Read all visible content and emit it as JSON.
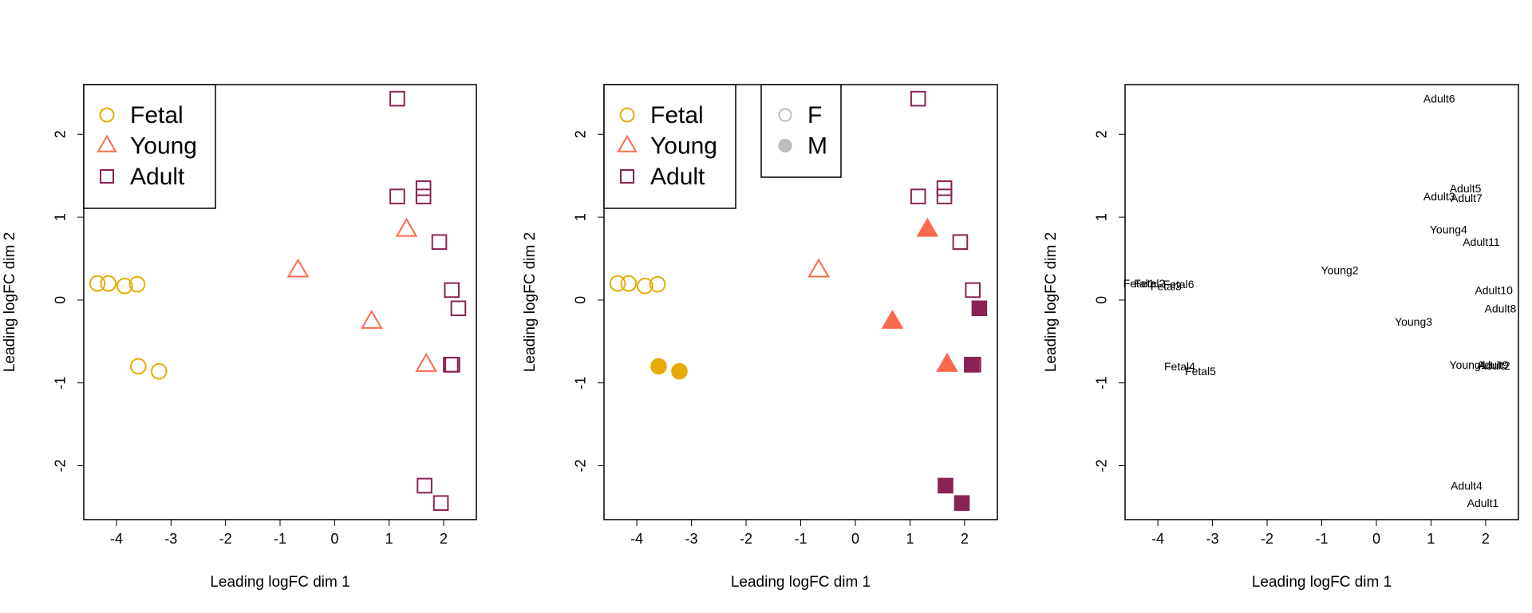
{
  "colors": {
    "fetal": "#E6AB02",
    "young": "#FC6A4E",
    "adult": "#8A2355",
    "sex_legend": "#BDBDBD"
  },
  "chart_data": [
    {
      "type": "scatter",
      "panel": "group",
      "xlabel": "Leading logFC dim 1",
      "ylabel": "Leading logFC dim 2",
      "xlim": [
        -4.6,
        2.6
      ],
      "ylim": [
        -2.65,
        2.6
      ],
      "xticks": [
        -4,
        -3,
        -2,
        -1,
        0,
        1,
        2
      ],
      "yticks": [
        -2,
        -1,
        0,
        1,
        2
      ],
      "legend": {
        "position": "top-left",
        "entries": [
          "Fetal",
          "Young",
          "Adult"
        ]
      },
      "series": [
        {
          "name": "Fetal",
          "marker": "circle",
          "color": "#E6AB02",
          "points": [
            [
              -4.35,
              0.2
            ],
            [
              -4.15,
              0.2
            ],
            [
              -3.85,
              0.17
            ],
            [
              -3.62,
              0.19
            ],
            [
              -3.6,
              -0.8
            ],
            [
              -3.22,
              -0.86
            ]
          ]
        },
        {
          "name": "Young",
          "marker": "triangle",
          "color": "#FC6A4E",
          "points": [
            [
              -0.67,
              0.36
            ],
            [
              0.68,
              -0.26
            ],
            [
              1.32,
              0.85
            ],
            [
              1.68,
              -0.78
            ]
          ]
        },
        {
          "name": "Adult",
          "marker": "square",
          "color": "#8A2355",
          "points": [
            [
              1.15,
              2.43
            ],
            [
              1.63,
              1.35
            ],
            [
              1.63,
              1.25
            ],
            [
              1.15,
              1.25
            ],
            [
              1.92,
              0.7
            ],
            [
              2.15,
              0.12
            ],
            [
              2.27,
              -0.1
            ],
            [
              2.13,
              -0.78
            ],
            [
              2.16,
              -0.78
            ],
            [
              1.65,
              -2.24
            ],
            [
              1.95,
              -2.45
            ]
          ]
        }
      ]
    },
    {
      "type": "scatter",
      "panel": "group-and-sex",
      "xlabel": "Leading logFC dim 1",
      "ylabel": "Leading logFC dim 2",
      "xlim": [
        -4.6,
        2.6
      ],
      "ylim": [
        -2.65,
        2.6
      ],
      "xticks": [
        -4,
        -3,
        -2,
        -1,
        0,
        1,
        2
      ],
      "yticks": [
        -2,
        -1,
        0,
        1,
        2
      ],
      "legend": {
        "position": "top-left",
        "entries": [
          "Fetal",
          "Young",
          "Adult"
        ]
      },
      "legend2": {
        "position": "top-center",
        "entries": [
          "F",
          "M"
        ]
      },
      "series": [
        {
          "name": "Fetal",
          "marker": "circle",
          "color": "#E6AB02",
          "points": [
            [
              -4.35,
              0.2,
              "F"
            ],
            [
              -4.15,
              0.2,
              "F"
            ],
            [
              -3.85,
              0.17,
              "F"
            ],
            [
              -3.62,
              0.19,
              "F"
            ],
            [
              -3.6,
              -0.8,
              "M"
            ],
            [
              -3.22,
              -0.86,
              "M"
            ]
          ]
        },
        {
          "name": "Young",
          "marker": "triangle",
          "color": "#FC6A4E",
          "points": [
            [
              -0.67,
              0.36,
              "F"
            ],
            [
              0.68,
              -0.26,
              "M"
            ],
            [
              1.32,
              0.85,
              "M"
            ],
            [
              1.68,
              -0.78,
              "M"
            ]
          ]
        },
        {
          "name": "Adult",
          "marker": "square",
          "color": "#8A2355",
          "points": [
            [
              1.15,
              2.43,
              "F"
            ],
            [
              1.63,
              1.35,
              "F"
            ],
            [
              1.63,
              1.25,
              "F"
            ],
            [
              1.15,
              1.25,
              "F"
            ],
            [
              1.92,
              0.7,
              "F"
            ],
            [
              2.15,
              0.12,
              "F"
            ],
            [
              2.27,
              -0.1,
              "M"
            ],
            [
              2.13,
              -0.78,
              "M"
            ],
            [
              2.16,
              -0.78,
              "F"
            ],
            [
              1.65,
              -2.24,
              "M"
            ],
            [
              1.95,
              -2.45,
              "M"
            ]
          ]
        }
      ]
    },
    {
      "type": "scatter",
      "panel": "sample-labels",
      "xlabel": "Leading logFC dim 1",
      "ylabel": "Leading logFC dim 2",
      "xlim": [
        -4.6,
        2.6
      ],
      "ylim": [
        -2.65,
        2.6
      ],
      "xticks": [
        -4,
        -3,
        -2,
        -1,
        0,
        1,
        2
      ],
      "yticks": [
        -2,
        -1,
        0,
        1,
        2
      ],
      "labels": [
        {
          "text": "Adult6",
          "x": 1.15,
          "y": 2.43
        },
        {
          "text": "Adult5",
          "x": 1.63,
          "y": 1.35
        },
        {
          "text": "Adult3",
          "x": 1.15,
          "y": 1.25
        },
        {
          "text": "Adult7",
          "x": 1.65,
          "y": 1.23
        },
        {
          "text": "Young4",
          "x": 1.32,
          "y": 0.85
        },
        {
          "text": "Adult11",
          "x": 1.92,
          "y": 0.7
        },
        {
          "text": "Young2",
          "x": -0.67,
          "y": 0.36
        },
        {
          "text": "Fetal1",
          "x": -4.35,
          "y": 0.2
        },
        {
          "text": "Fetal2",
          "x": -4.15,
          "y": 0.2
        },
        {
          "text": "Fetal3",
          "x": -3.85,
          "y": 0.17
        },
        {
          "text": "Fetal6",
          "x": -3.62,
          "y": 0.19
        },
        {
          "text": "Adult10",
          "x": 2.15,
          "y": 0.12
        },
        {
          "text": "Adult8",
          "x": 2.27,
          "y": -0.1
        },
        {
          "text": "Young3",
          "x": 0.68,
          "y": -0.26
        },
        {
          "text": "Fetal4",
          "x": -3.6,
          "y": -0.8
        },
        {
          "text": "Fetal5",
          "x": -3.22,
          "y": -0.86
        },
        {
          "text": "Young1",
          "x": 1.68,
          "y": -0.78
        },
        {
          "text": "Adult9",
          "x": 2.13,
          "y": -0.78
        },
        {
          "text": "Adult2",
          "x": 2.16,
          "y": -0.79
        },
        {
          "text": "Adult4",
          "x": 1.65,
          "y": -2.24
        },
        {
          "text": "Adult1",
          "x": 1.95,
          "y": -2.45
        }
      ]
    }
  ]
}
